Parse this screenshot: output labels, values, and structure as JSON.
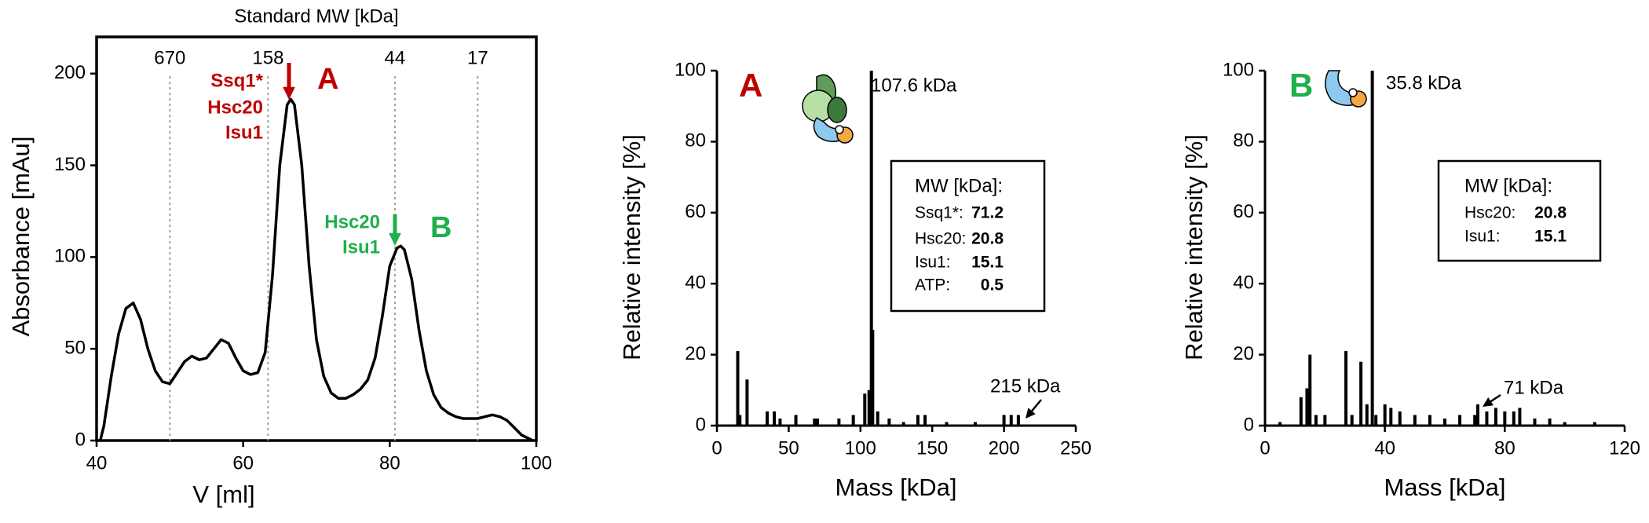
{
  "chart_data": [
    {
      "type": "line",
      "x2label": "Standard MW [kDa]",
      "xlabel": "V [ml]",
      "ylabel": "Absorbance [mAu]",
      "color": "#000000",
      "x": [
        40.5,
        41,
        42,
        43,
        44,
        45,
        46,
        47,
        48,
        49,
        50,
        51,
        52,
        53,
        54,
        55,
        56,
        57,
        58,
        59,
        60,
        61,
        62,
        63,
        64,
        65,
        66,
        66.5,
        67,
        68,
        69,
        70,
        71,
        72,
        73,
        74,
        75,
        76,
        77,
        78,
        79,
        80,
        81,
        81.5,
        82,
        83,
        84,
        85,
        86,
        87,
        88,
        89,
        90,
        91,
        92,
        93,
        94,
        95,
        96,
        97,
        98,
        99,
        99.5
      ],
      "values": [
        0,
        8,
        35,
        58,
        72,
        75,
        66,
        50,
        38,
        32,
        31,
        37,
        43,
        46,
        44,
        45,
        50,
        55,
        53,
        45,
        38,
        36,
        37,
        48,
        90,
        150,
        183,
        186,
        183,
        150,
        95,
        55,
        35,
        26,
        23,
        23,
        25,
        28,
        33,
        45,
        68,
        95,
        105,
        106,
        104,
        88,
        60,
        38,
        25,
        18,
        15,
        13,
        12,
        12,
        12,
        13,
        14,
        13,
        11,
        7,
        3,
        1,
        0
      ],
      "xlim": [
        40,
        100
      ],
      "xticks": [
        40,
        60,
        80,
        100
      ],
      "ylim": [
        0,
        220
      ],
      "yticks": [
        0,
        50,
        100,
        150,
        200
      ],
      "x2ticks": [
        {
          "value": 50,
          "label": "670"
        },
        {
          "value": 63.4,
          "label": "158"
        },
        {
          "value": 80.7,
          "label": "44"
        },
        {
          "value": 92,
          "label": "17"
        }
      ],
      "peak_labels": [
        {
          "label": "A",
          "components": [
            "Ssq1*",
            "Hsc20",
            "Isu1"
          ],
          "color": "#c00000"
        },
        {
          "label": "B",
          "components": [
            "Hsc20",
            "Isu1"
          ],
          "color": "#1faf4b"
        }
      ]
    },
    {
      "type": "bar",
      "panel_label": "A",
      "panel_color": "#c00000",
      "xlabel": "Mass [kDa]",
      "ylabel": "Relative intensity [%]",
      "color": "#000000",
      "x": [
        14.5,
        16,
        21,
        35,
        40,
        44,
        55,
        68,
        70,
        85,
        95,
        103,
        106,
        107.6,
        108.5,
        112,
        120,
        130,
        140,
        145,
        160,
        180,
        200,
        205,
        210
      ],
      "values": [
        21,
        3,
        13,
        4,
        4,
        2,
        3,
        2,
        2,
        2,
        3,
        9,
        10,
        100,
        27,
        4,
        2,
        1,
        3,
        3,
        1,
        1,
        3,
        3,
        3
      ],
      "xlim": [
        0,
        250
      ],
      "xticks": [
        0,
        50,
        100,
        150,
        200,
        250
      ],
      "ylim": [
        0,
        100
      ],
      "yticks": [
        0,
        20,
        40,
        60,
        80,
        100
      ],
      "peak_label": "107.6 kDa",
      "annotation": "215 kDa",
      "mw_box": {
        "title": "MW [kDa]:",
        "rows": [
          {
            "name": "Ssq1*:",
            "value": 71.2
          },
          {
            "name": "Hsc20:",
            "value": 20.8
          },
          {
            "name": "Isu1:",
            "value": 15.1
          },
          {
            "name": "ATP:",
            "value": 0.5
          }
        ]
      }
    },
    {
      "type": "bar",
      "panel_label": "B",
      "panel_color": "#1faf4b",
      "xlabel": "Mass [kDa]",
      "ylabel": "Relative intensity [%]",
      "color": "#000000",
      "x": [
        5,
        12,
        14,
        15,
        17,
        20,
        27,
        29,
        32,
        34,
        35.8,
        37,
        40,
        42,
        45,
        50,
        55,
        60,
        65,
        70,
        71,
        74,
        77,
        80,
        83,
        85,
        90,
        95,
        100,
        110
      ],
      "values": [
        1,
        8,
        10.5,
        20,
        3,
        3,
        21,
        3,
        18,
        6,
        100,
        3,
        6,
        5,
        4,
        3,
        3,
        2,
        3,
        3,
        6,
        4,
        5,
        4,
        4,
        5,
        2,
        2,
        1,
        1
      ],
      "xlim": [
        0,
        120
      ],
      "xticks": [
        0,
        40,
        80,
        120
      ],
      "ylim": [
        0,
        100
      ],
      "yticks": [
        0,
        20,
        40,
        60,
        80,
        100
      ],
      "peak_label": "35.8 kDa",
      "annotation": "71 kDa",
      "mw_box": {
        "title": "MW [kDa]:",
        "rows": [
          {
            "name": "Hsc20:",
            "value": 20.8
          },
          {
            "name": "Isu1:",
            "value": 15.1
          }
        ]
      }
    }
  ]
}
